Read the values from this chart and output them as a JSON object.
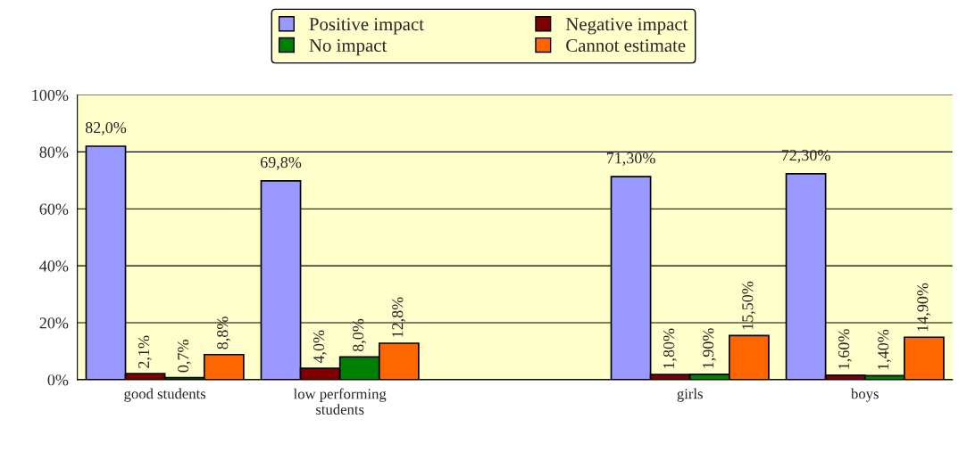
{
  "chart_data": {
    "type": "bar",
    "categories": [
      "good students",
      "low performing\nstudents",
      null,
      "girls",
      "boys"
    ],
    "series": [
      {
        "name": "Positive impact",
        "color": "#9999ff",
        "values": [
          82.0,
          69.8,
          null,
          71.3,
          72.3
        ],
        "value_labels": [
          "82,0%",
          "69,8%",
          null,
          "71,30%",
          "72,30%"
        ]
      },
      {
        "name": "Negative impact",
        "color": "#800000",
        "values": [
          2.1,
          4.0,
          null,
          1.8,
          1.6
        ],
        "value_labels": [
          "2,1%",
          "4,0%",
          null,
          "1,80%",
          "1,60%"
        ]
      },
      {
        "name": "No impact",
        "color": "#008000",
        "values": [
          0.7,
          8.0,
          null,
          1.9,
          1.4
        ],
        "value_labels": [
          "0,7%",
          "8,0%",
          null,
          "1,90%",
          "1,40%"
        ]
      },
      {
        "name": "Cannot estimate",
        "color": "#ff6600",
        "values": [
          8.8,
          12.8,
          null,
          15.5,
          14.9
        ],
        "value_labels": [
          "8,8%",
          "12,8%",
          null,
          "15,50%",
          "14,90%"
        ]
      }
    ],
    "ylim": [
      0,
      100
    ],
    "yticks": [
      {
        "value": 0,
        "label": "0%"
      },
      {
        "value": 20,
        "label": "20%"
      },
      {
        "value": 40,
        "label": "40%"
      },
      {
        "value": 60,
        "label": "60%"
      },
      {
        "value": 80,
        "label": "80%"
      },
      {
        "value": 100,
        "label": "100%"
      }
    ],
    "grid": "y",
    "legend": "top"
  }
}
